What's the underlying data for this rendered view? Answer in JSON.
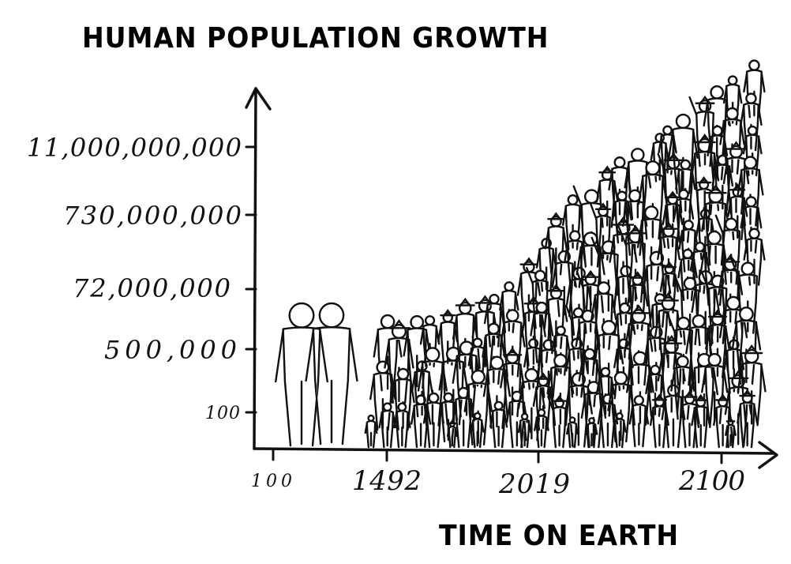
{
  "chart_data": {
    "type": "scatter",
    "title": "HUMAN POPULATION GROWTH",
    "xlabel": "TIME ON EARTH",
    "ylabel": "",
    "x_ticks": [
      "100",
      "1492",
      "2019",
      "2100"
    ],
    "y_ticks": [
      "100",
      "500,000",
      "72,000,000",
      "730,000,000",
      "11,000,000,000"
    ],
    "y_scale": "log",
    "grid": false,
    "points": [
      {
        "x": "100",
        "y": "100"
      },
      {
        "x": "1492",
        "y": "500,000"
      },
      {
        "x": "2019",
        "y": "72,000,000"
      },
      {
        "x": "2100",
        "y": "11,000,000,000"
      }
    ],
    "colors": {
      "ink": "#111111",
      "background": "#ffffff"
    }
  }
}
